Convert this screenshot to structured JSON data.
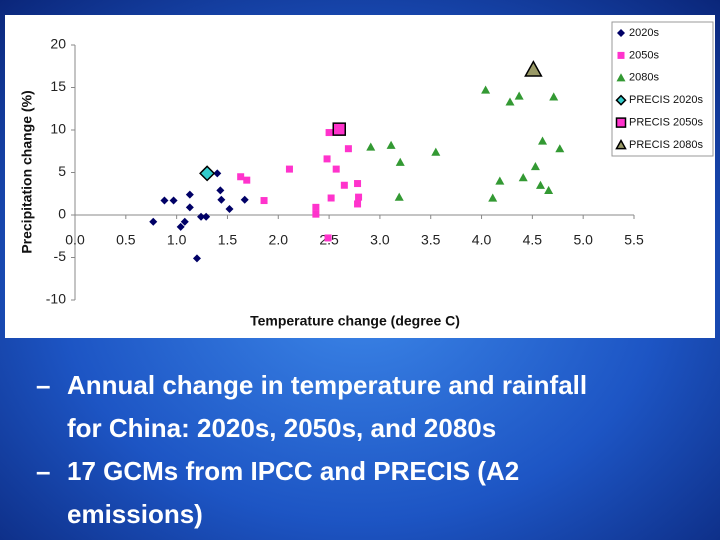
{
  "chart_data": {
    "type": "scatter",
    "xlabel": "Temperature change (degree C)",
    "ylabel": "Precipitation change (%)",
    "xlim": [
      0,
      5.5
    ],
    "ylim": [
      -10,
      20
    ],
    "xticks": [
      {
        "value": 0,
        "label": "0.0"
      },
      0.5,
      {
        "value": 1,
        "label": "1.0"
      },
      1.5,
      {
        "value": 2,
        "label": "2.0"
      },
      2.5,
      {
        "value": 3,
        "label": "3.0"
      },
      3.5,
      {
        "value": 4,
        "label": "4.0"
      },
      4.5,
      {
        "value": 5,
        "label": "5.0"
      },
      5.5
    ],
    "yticks": [
      -10,
      -5,
      0,
      5,
      10,
      15,
      20
    ],
    "grid": false,
    "legend": "top-right",
    "series": [
      {
        "name": "2020s",
        "color": "#000066",
        "marker": "diamond",
        "size": 4,
        "x": [
          0.77,
          0.88,
          0.97,
          1.13,
          1.13,
          1.08,
          1.04,
          1.24,
          1.29,
          1.2,
          1.4,
          1.43,
          1.44,
          1.52,
          1.67
        ],
        "values": [
          -0.8,
          1.7,
          1.7,
          2.4,
          0.9,
          -0.8,
          -1.4,
          -0.2,
          -0.2,
          -5.1,
          4.9,
          2.9,
          1.8,
          0.7,
          1.8
        ]
      },
      {
        "name": "2050s",
        "color": "#ff33cc",
        "marker": "square",
        "size": 3.5,
        "x": [
          1.63,
          1.69,
          1.86,
          2.11,
          2.37,
          2.37,
          2.48,
          2.5,
          2.49,
          2.52,
          2.57,
          2.65,
          2.69,
          2.78,
          2.79,
          2.78
        ],
        "values": [
          4.5,
          4.1,
          1.7,
          5.4,
          0.9,
          0.1,
          6.6,
          9.7,
          -2.7,
          2.0,
          5.4,
          3.5,
          7.8,
          3.7,
          2.1,
          1.3
        ]
      },
      {
        "name": "2080s",
        "color": "#339933",
        "marker": "triangle",
        "size": 4.5,
        "x": [
          2.91,
          3.11,
          3.2,
          3.19,
          3.55,
          4.04,
          4.11,
          4.18,
          4.28,
          4.37,
          4.41,
          4.53,
          4.58,
          4.6,
          4.66,
          4.71,
          4.77
        ],
        "values": [
          8.0,
          8.2,
          6.2,
          2.1,
          7.4,
          14.7,
          2.0,
          4.0,
          13.3,
          14.0,
          4.4,
          5.7,
          3.5,
          8.7,
          2.9,
          13.9,
          7.8
        ]
      },
      {
        "name": "PRECIS 2020s",
        "color": "#33cccc",
        "marker": "diamond",
        "size": 7,
        "outline": "#000000",
        "x": [
          1.3
        ],
        "values": [
          4.9
        ]
      },
      {
        "name": "PRECIS 2050s",
        "color": "#ff33cc",
        "marker": "square",
        "size": 6,
        "outline": "#000000",
        "x": [
          2.6
        ],
        "values": [
          10.1
        ]
      },
      {
        "name": "PRECIS 2080s",
        "color": "#999966",
        "marker": "triangle",
        "size": 8,
        "outline": "#000000",
        "x": [
          4.51
        ],
        "values": [
          17.1
        ]
      }
    ]
  },
  "bullets": [
    {
      "marker": "–",
      "lines": [
        "Annual change in temperature and rainfall",
        "for China: 2020s, 2050s, and 2080s"
      ]
    },
    {
      "marker": "–",
      "lines": [
        "17 GCMs from IPCC and PRECIS (A2",
        "emissions)"
      ]
    }
  ]
}
